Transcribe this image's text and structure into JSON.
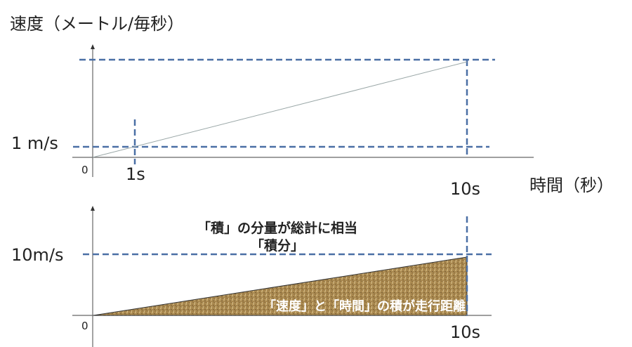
{
  "top_panel": {
    "y_axis_title": "速度（メートル/毎秒）",
    "y_tick": "1 m/s",
    "origin": "0",
    "x_tick_1": "1s",
    "x_tick_10": "10s",
    "x_axis_title": "時間（秒）"
  },
  "bottom_panel": {
    "y_tick": "10m/s",
    "origin": "0",
    "x_tick_10": "10s",
    "heading_line1": "「積」の分量が総計に相当",
    "heading_line2": "「積分」",
    "area_caption": "「速度」と「時間」の積が走行距離"
  },
  "colors": {
    "guide_dash": "#4a6fa5",
    "axis": "#666666",
    "line": "#9aa7a7",
    "area_fill": "#a9884f"
  }
}
